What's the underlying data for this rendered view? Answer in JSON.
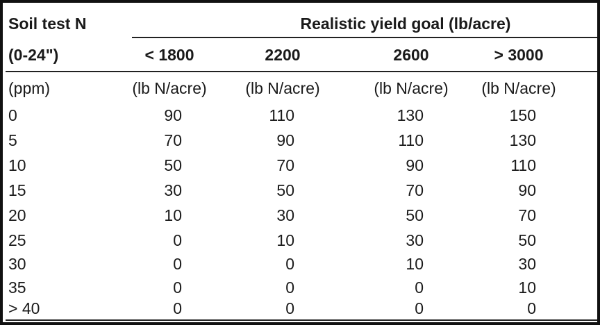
{
  "table": {
    "header": {
      "soil_test_label": "Soil test N",
      "depth_label": "(0-24\")",
      "yield_goal_title": "Realistic yield goal (lb/acre)",
      "yield_goals": [
        "< 1800",
        "2200",
        "2600",
        "> 3000"
      ],
      "unit_row": [
        "(ppm)",
        "(lb N/acre)",
        "(lb N/acre)",
        "(lb N/acre)",
        "(lb N/acre)"
      ]
    },
    "rows": [
      {
        "ppm": "0",
        "values": [
          "90",
          "110",
          "130",
          "150"
        ]
      },
      {
        "ppm": "5",
        "values": [
          "70",
          "90",
          "110",
          "130"
        ]
      },
      {
        "ppm": "10",
        "values": [
          "50",
          "70",
          "90",
          "110"
        ]
      },
      {
        "ppm": "15",
        "values": [
          "30",
          "50",
          "70",
          "90"
        ]
      },
      {
        "ppm": "20",
        "values": [
          "10",
          "30",
          "50",
          "70"
        ]
      },
      {
        "ppm": "25",
        "values": [
          "0",
          "10",
          "30",
          "50"
        ]
      },
      {
        "ppm": "30",
        "values": [
          "0",
          "0",
          "10",
          "30"
        ]
      },
      {
        "ppm": "35",
        "values": [
          "0",
          "0",
          "0",
          "10"
        ]
      },
      {
        "ppm": "> 40",
        "values": [
          "0",
          "0",
          "0",
          "0"
        ]
      }
    ]
  }
}
